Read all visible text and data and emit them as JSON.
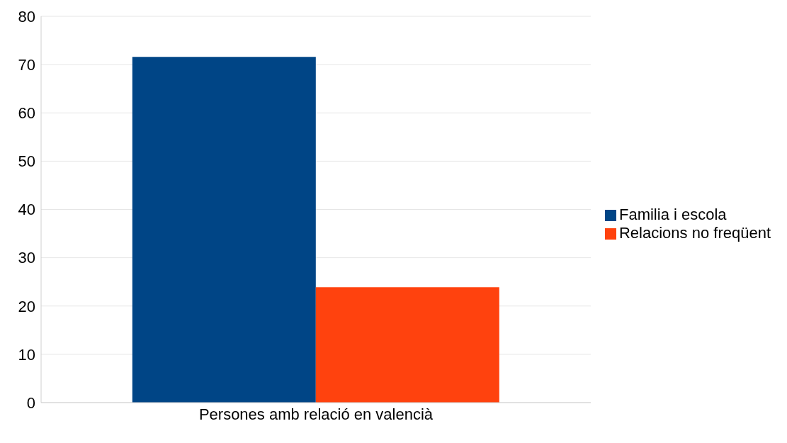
{
  "chart_data": {
    "type": "bar",
    "categories": [
      "Persones amb relació en valencià"
    ],
    "series": [
      {
        "name": "Familia i escola",
        "color": "#004586",
        "values": [
          71.6
        ]
      },
      {
        "name": "Relacions no freqüent",
        "color": "#ff420e",
        "values": [
          23.9
        ]
      }
    ],
    "ylim": [
      0,
      80
    ],
    "yticks": [
      0,
      10,
      20,
      30,
      40,
      50,
      60,
      70,
      80
    ],
    "grid": "y",
    "legend": "right"
  }
}
